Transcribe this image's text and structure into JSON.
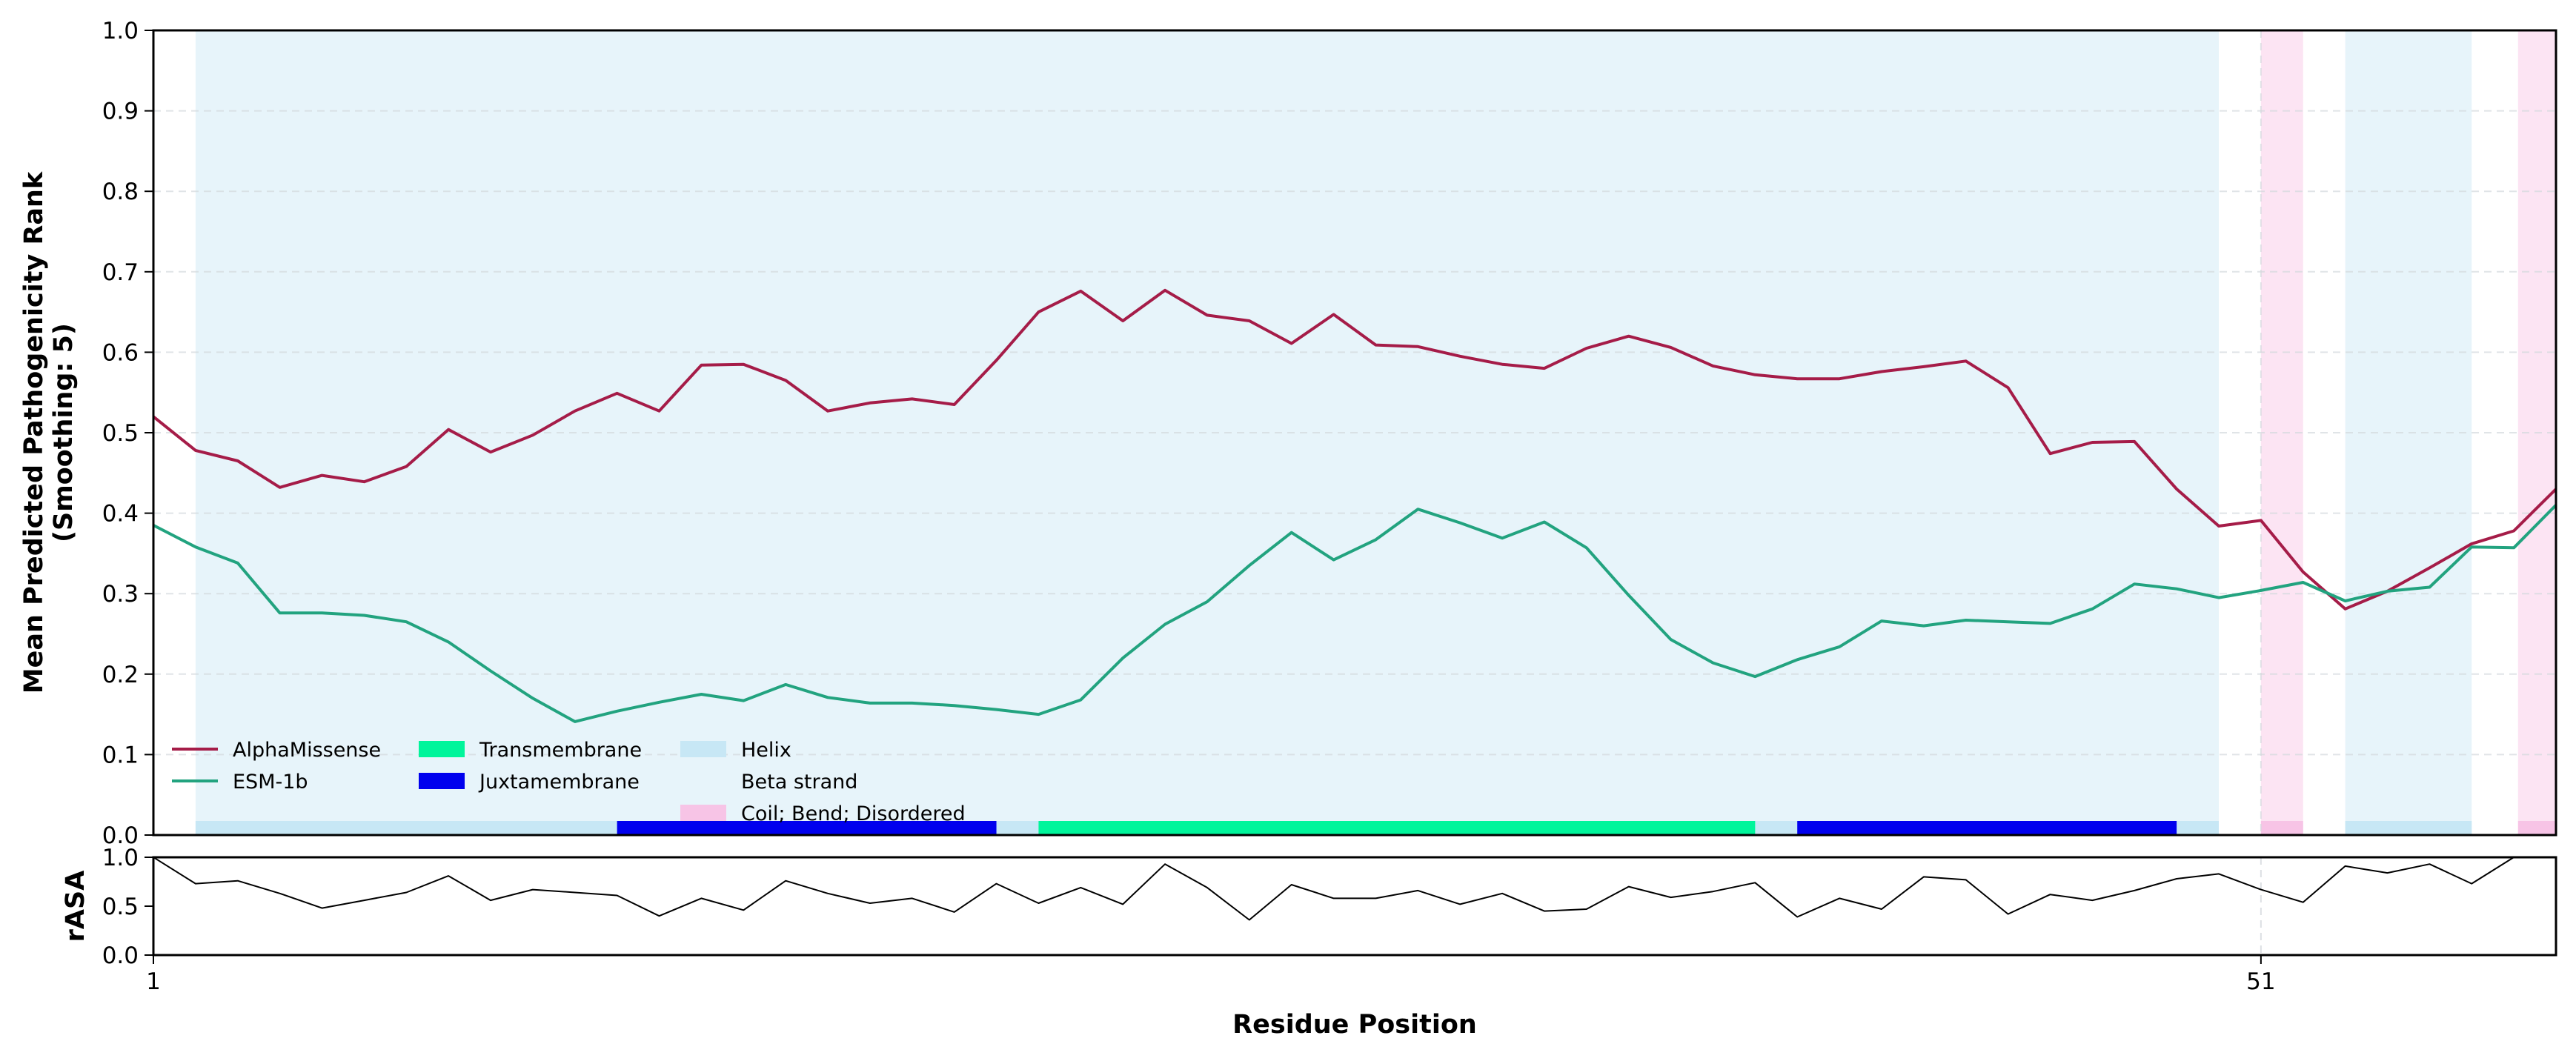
{
  "chart_data": {
    "type": "line",
    "main_panel": {
      "ylabel_lines": [
        "Mean Predicted Pathogenicity Rank",
        "(Smoothing: 5)"
      ],
      "ylim": [
        0,
        1
      ],
      "yticks": [
        "0.0",
        "0.1",
        "0.2",
        "0.3",
        "0.4",
        "0.5",
        "0.6",
        "0.7",
        "0.8",
        "0.9",
        "1.0"
      ],
      "grid": true,
      "x_domain": [
        1,
        58
      ],
      "series": [
        {
          "name": "AlphaMissense",
          "color": "#a51c48",
          "x": [
            1,
            2,
            3,
            4,
            5,
            6,
            7,
            8,
            9,
            10,
            11,
            12,
            13,
            14,
            15,
            16,
            17,
            18,
            19,
            20,
            21,
            22,
            23,
            24,
            25,
            26,
            27,
            28,
            29,
            30,
            31,
            32,
            33,
            34,
            35,
            36,
            37,
            38,
            39,
            40,
            41,
            42,
            43,
            44,
            45,
            46,
            47,
            48,
            49,
            50,
            51,
            52,
            53,
            54,
            55,
            56,
            57,
            58
          ],
          "values": [
            0.52,
            0.478,
            0.465,
            0.432,
            0.447,
            0.439,
            0.458,
            0.504,
            0.476,
            0.497,
            0.527,
            0.549,
            0.527,
            0.584,
            0.585,
            0.565,
            0.527,
            0.537,
            0.542,
            0.535,
            0.59,
            0.65,
            0.676,
            0.639,
            0.677,
            0.646,
            0.639,
            0.611,
            0.647,
            0.609,
            0.607,
            0.595,
            0.585,
            0.58,
            0.605,
            0.62,
            0.606,
            0.583,
            0.572,
            0.567,
            0.567,
            0.576,
            0.582,
            0.589,
            0.556,
            0.474,
            0.488,
            0.489,
            0.43,
            0.384,
            0.391,
            0.327,
            0.281,
            0.303,
            0.332,
            0.362,
            0.378,
            0.43
          ]
        },
        {
          "name": "ESM-1b",
          "color": "#22a37f",
          "x": [
            1,
            2,
            3,
            4,
            5,
            6,
            7,
            8,
            9,
            10,
            11,
            12,
            13,
            14,
            15,
            16,
            17,
            18,
            19,
            20,
            21,
            22,
            23,
            24,
            25,
            26,
            27,
            28,
            29,
            30,
            31,
            32,
            33,
            34,
            35,
            36,
            37,
            38,
            39,
            40,
            41,
            42,
            43,
            44,
            45,
            46,
            47,
            48,
            49,
            50,
            51,
            52,
            53,
            54,
            55,
            56,
            57,
            58
          ],
          "values": [
            0.385,
            0.358,
            0.338,
            0.276,
            0.276,
            0.273,
            0.265,
            0.24,
            0.204,
            0.17,
            0.141,
            0.154,
            0.165,
            0.175,
            0.167,
            0.187,
            0.171,
            0.164,
            0.164,
            0.161,
            0.156,
            0.15,
            0.168,
            0.22,
            0.262,
            0.29,
            0.335,
            0.376,
            0.342,
            0.367,
            0.405,
            0.388,
            0.369,
            0.389,
            0.357,
            0.298,
            0.243,
            0.214,
            0.197,
            0.218,
            0.234,
            0.266,
            0.26,
            0.267,
            0.265,
            0.263,
            0.281,
            0.312,
            0.306,
            0.295,
            0.304,
            0.314,
            0.291,
            0.303,
            0.308,
            0.358,
            0.357,
            0.41
          ]
        }
      ],
      "secondary_structure": [
        {
          "type": "Helix",
          "start": 2,
          "end": 50
        },
        {
          "type": "Coil; Bend; Disordered",
          "start": 51,
          "end": 52
        },
        {
          "type": "Helix",
          "start": 53,
          "end": 56
        },
        {
          "type": "Coil; Bend; Disordered",
          "start": 57.1,
          "end": 58.5
        }
      ],
      "domains": [
        {
          "type": "Juxtamembrane",
          "start": 12,
          "end": 21
        },
        {
          "type": "Transmembrane",
          "start": 22,
          "end": 39
        },
        {
          "type": "Juxtamembrane",
          "start": 40,
          "end": 49
        }
      ],
      "legend": {
        "placement": "lower-left",
        "entries": [
          {
            "label": "AlphaMissense",
            "kind": "line",
            "color": "#a51c48"
          },
          {
            "label": "ESM-1b",
            "kind": "line",
            "color": "#22a37f"
          },
          {
            "label": "Transmembrane",
            "kind": "patch",
            "color": "#00f59b"
          },
          {
            "label": "Juxtamembrane",
            "kind": "patch",
            "color": "#0000ee"
          },
          {
            "label": "Helix",
            "kind": "patch",
            "color": "#c7e7f5"
          },
          {
            "label": "Beta strand",
            "kind": "patch",
            "color": "none"
          },
          {
            "label": "Coil; Bend; Disordered",
            "kind": "patch",
            "color": "#f7c4e6"
          }
        ]
      }
    },
    "rasa_panel": {
      "ylabel": "rASA",
      "ylim": [
        0,
        1
      ],
      "yticks": [
        "0.0",
        "0.5",
        "1.0"
      ],
      "x": [
        1,
        2,
        3,
        4,
        5,
        6,
        7,
        8,
        9,
        10,
        11,
        12,
        13,
        14,
        15,
        16,
        17,
        18,
        19,
        20,
        21,
        22,
        23,
        24,
        25,
        26,
        27,
        28,
        29,
        30,
        31,
        32,
        33,
        34,
        35,
        36,
        37,
        38,
        39,
        40,
        41,
        42,
        43,
        44,
        45,
        46,
        47,
        48,
        49,
        50,
        51,
        52,
        53,
        54,
        55,
        56,
        57,
        58
      ],
      "values": [
        1.0,
        0.73,
        0.76,
        0.63,
        0.48,
        0.56,
        0.64,
        0.81,
        0.56,
        0.67,
        0.64,
        0.61,
        0.4,
        0.58,
        0.46,
        0.76,
        0.63,
        0.53,
        0.58,
        0.44,
        0.73,
        0.53,
        0.69,
        0.52,
        0.93,
        0.69,
        0.36,
        0.72,
        0.58,
        0.58,
        0.66,
        0.52,
        0.63,
        0.45,
        0.47,
        0.7,
        0.59,
        0.65,
        0.74,
        0.39,
        0.58,
        0.47,
        0.8,
        0.77,
        0.42,
        0.62,
        0.56,
        0.66,
        0.78,
        0.83,
        0.67,
        0.54,
        0.91,
        0.84,
        0.93,
        0.73,
        1.0,
        1.05
      ]
    },
    "xlabel": "Residue Position",
    "xticks": [
      1,
      51
    ]
  }
}
